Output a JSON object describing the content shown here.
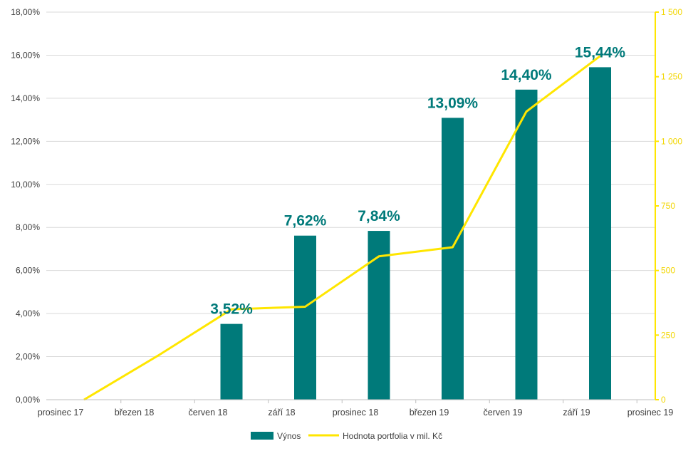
{
  "colors": {
    "bar": "#007A7A",
    "line": "#FFE600",
    "grid": "#D9D9D9",
    "axis_text": "#404040",
    "right_axis_text": "#F2D600"
  },
  "chart_data": {
    "type": "bar",
    "title": "",
    "categories": [
      "prosinec 17",
      "březen 18",
      "červen 18",
      "září 18",
      "prosinec 18",
      "březen 19",
      "červen 19",
      "září 19",
      "prosinec 19"
    ],
    "series": [
      {
        "name": "Výnos",
        "type": "bar",
        "axis": "left",
        "values": [
          null,
          null,
          3.52,
          7.62,
          7.84,
          13.09,
          14.4,
          15.44,
          null
        ],
        "labels": [
          "",
          "",
          "3,52%",
          "7,62%",
          "7,84%",
          "13,09%",
          "14,40%",
          "15,44%",
          ""
        ]
      },
      {
        "name": "Hodnota portfolia v mil. Kč",
        "type": "line",
        "axis": "right",
        "values": [
          0,
          170,
          350,
          360,
          555,
          590,
          1115,
          1330,
          null
        ]
      }
    ],
    "y_left": {
      "range": [
        0,
        18
      ],
      "ticks": [
        0,
        2,
        4,
        6,
        8,
        10,
        12,
        14,
        16,
        18
      ],
      "tick_labels": [
        "0,00%",
        "2,00%",
        "4,00%",
        "6,00%",
        "8,00%",
        "10,00%",
        "12,00%",
        "14,00%",
        "16,00%",
        "18,00%"
      ]
    },
    "y_right": {
      "range": [
        0,
        1500
      ],
      "ticks": [
        0,
        250,
        500,
        750,
        1000,
        1250,
        1500
      ],
      "tick_labels": [
        "0",
        "250",
        "500",
        "750",
        "1 000",
        "1 250",
        "1 500"
      ]
    },
    "grid": true,
    "legend": "bottom-center"
  }
}
